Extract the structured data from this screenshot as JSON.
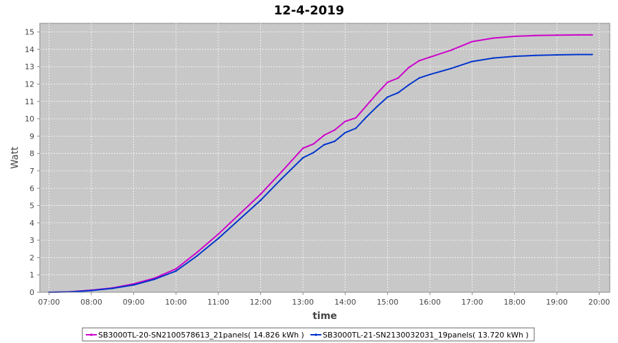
{
  "chart_data": {
    "type": "line",
    "title": "12-4-2019",
    "xlabel": "time",
    "ylabel": "Watt",
    "xlim": [
      "06:47",
      "20:15"
    ],
    "ylim": [
      0,
      15.5
    ],
    "grid": true,
    "legend_position": "bottom",
    "x_ticks": [
      "07:00",
      "08:00",
      "09:00",
      "10:00",
      "11:00",
      "12:00",
      "13:00",
      "14:00",
      "15:00",
      "16:00",
      "17:00",
      "18:00",
      "19:00",
      "20:00"
    ],
    "y_ticks": [
      "0",
      "1",
      "2",
      "3",
      "4",
      "5",
      "6",
      "7",
      "8",
      "9",
      "10",
      "11",
      "12",
      "13",
      "14",
      "15"
    ],
    "colors": {
      "plot_background": "#c8c8c8",
      "grid": "#ffffff",
      "series_1": "#cc00cc",
      "series_2": "#0033cc"
    },
    "series": [
      {
        "name": "SB3000TL-20-SN2100578613_21panels( 14.826 kWh )",
        "x": [
          "07:00",
          "07:30",
          "08:00",
          "08:30",
          "09:00",
          "09:30",
          "10:00",
          "10:30",
          "11:00",
          "11:30",
          "12:00",
          "12:30",
          "13:00",
          "13:15",
          "13:30",
          "13:45",
          "14:00",
          "14:15",
          "14:30",
          "14:45",
          "15:00",
          "15:15",
          "15:30",
          "15:45",
          "16:00",
          "16:30",
          "17:00",
          "17:30",
          "18:00",
          "18:30",
          "19:00",
          "19:30",
          "19:50"
        ],
        "values": [
          0.0,
          0.03,
          0.12,
          0.25,
          0.48,
          0.82,
          1.35,
          2.3,
          3.35,
          4.5,
          5.65,
          6.95,
          8.3,
          8.55,
          9.05,
          9.35,
          9.85,
          10.05,
          10.75,
          11.45,
          12.1,
          12.35,
          12.95,
          13.35,
          13.55,
          13.95,
          14.45,
          14.65,
          14.75,
          14.8,
          14.82,
          14.83,
          14.83
        ]
      },
      {
        "name": "SB3000TL-21-SN2130032031_19panels( 13.720 kWh )",
        "x": [
          "07:00",
          "07:30",
          "08:00",
          "08:30",
          "09:00",
          "09:30",
          "10:00",
          "10:30",
          "11:00",
          "11:30",
          "12:00",
          "12:30",
          "13:00",
          "13:15",
          "13:30",
          "13:45",
          "14:00",
          "14:15",
          "14:30",
          "14:45",
          "15:00",
          "15:15",
          "15:30",
          "15:45",
          "16:00",
          "16:30",
          "17:00",
          "17:30",
          "18:00",
          "18:30",
          "19:00",
          "19:30",
          "19:50"
        ],
        "values": [
          0.0,
          0.02,
          0.1,
          0.22,
          0.42,
          0.75,
          1.22,
          2.1,
          3.1,
          4.2,
          5.3,
          6.55,
          7.75,
          8.05,
          8.5,
          8.7,
          9.2,
          9.45,
          10.1,
          10.7,
          11.25,
          11.5,
          11.95,
          12.35,
          12.55,
          12.9,
          13.3,
          13.5,
          13.6,
          13.65,
          13.68,
          13.7,
          13.7
        ]
      }
    ]
  }
}
